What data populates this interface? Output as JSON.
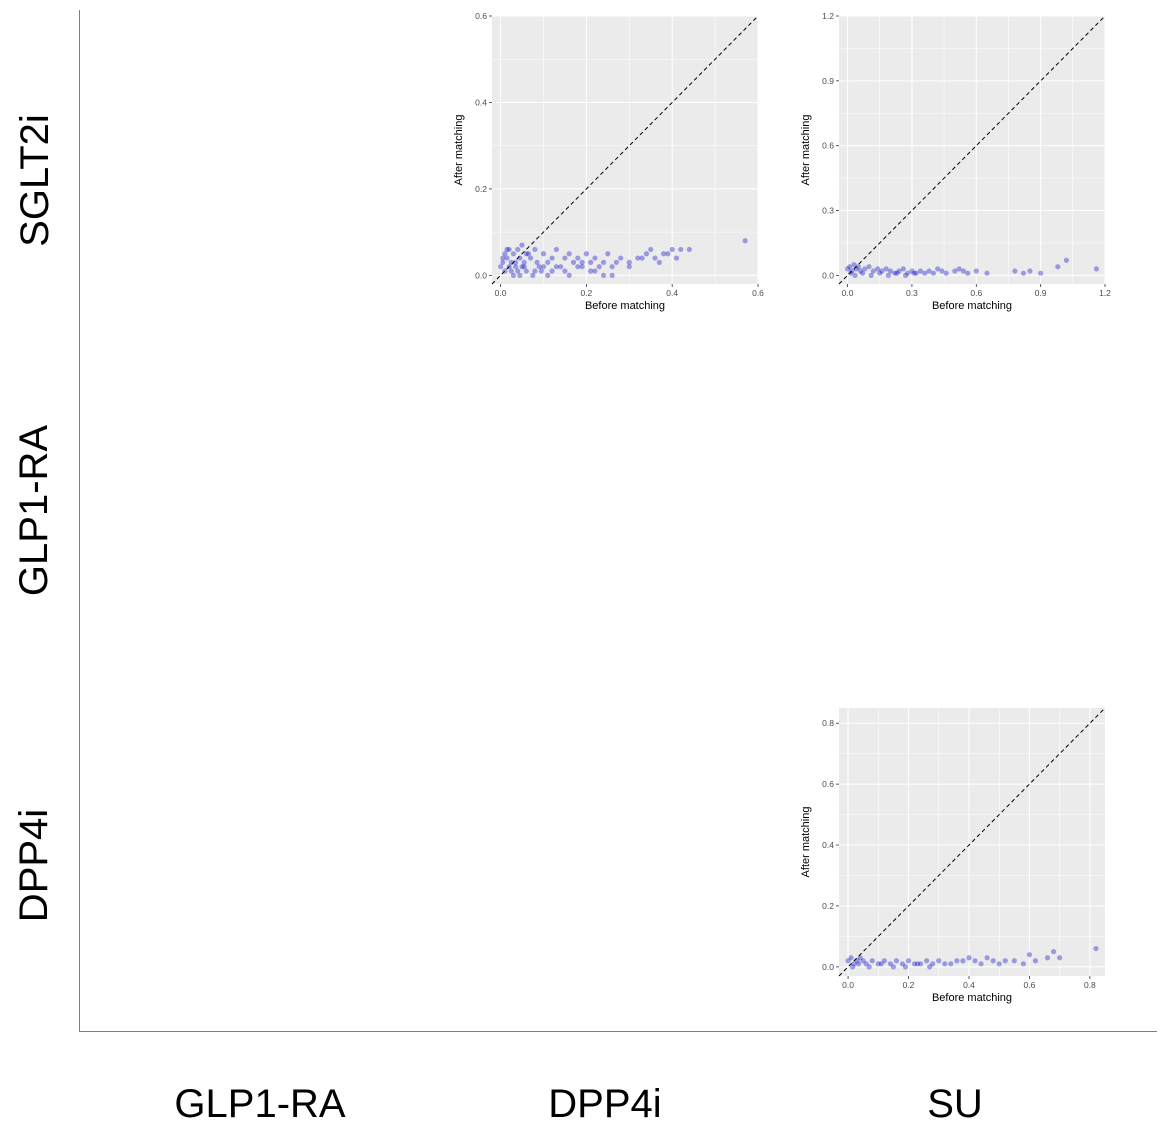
{
  "grid": {
    "rows": [
      "SGLT2i",
      "GLP1-RA",
      "DPP4i"
    ],
    "columns": [
      "GLP1-RA",
      "DPP4i",
      "SU"
    ]
  },
  "colors": {
    "point": "#0000cc",
    "panel_bg": "#ebebeb",
    "grid": "#ffffff",
    "diagonal": "#000000"
  },
  "chart_data": [
    {
      "type": "scatter",
      "panel_row": "SGLT2i",
      "panel_col": "DPP4i",
      "xlabel": "Before matching",
      "ylabel": "After matching",
      "xlim": [
        -0.02,
        0.6
      ],
      "ylim": [
        -0.02,
        0.6
      ],
      "x_ticks": [
        0.0,
        0.2,
        0.4,
        0.6
      ],
      "y_ticks": [
        0.0,
        0.2,
        0.4,
        0.6
      ],
      "tick_labels_x": [
        "0.0",
        "0.2",
        "0.4",
        "0.6"
      ],
      "tick_labels_y": [
        "0.0",
        "0.2",
        "0.4",
        "0.6"
      ],
      "reference_line": "y = x",
      "grid": true,
      "series": [
        {
          "x": [
            0.0,
            0.005,
            0.01,
            0.015,
            0.02,
            0.025,
            0.03,
            0.035,
            0.04,
            0.045,
            0.05,
            0.055,
            0.06,
            0.07,
            0.08,
            0.09,
            0.1,
            0.11,
            0.12,
            0.13,
            0.14,
            0.15,
            0.16,
            0.17,
            0.18,
            0.19,
            0.2,
            0.21,
            0.22,
            0.23,
            0.24,
            0.25,
            0.26,
            0.27,
            0.28,
            0.3,
            0.32,
            0.34,
            0.35,
            0.36,
            0.38,
            0.4,
            0.42,
            0.57,
            0.01,
            0.02,
            0.03,
            0.04,
            0.05,
            0.06,
            0.08,
            0.1,
            0.12,
            0.15,
            0.18,
            0.21,
            0.24,
            0.005,
            0.015,
            0.025,
            0.035,
            0.045,
            0.055,
            0.065,
            0.075,
            0.085,
            0.095,
            0.11,
            0.13,
            0.16,
            0.19,
            0.22,
            0.26,
            0.3,
            0.33,
            0.37,
            0.39,
            0.41,
            0.44
          ],
          "y": [
            0.02,
            0.03,
            0.05,
            0.04,
            0.06,
            0.03,
            0.05,
            0.02,
            0.06,
            0.04,
            0.07,
            0.03,
            0.05,
            0.04,
            0.06,
            0.02,
            0.05,
            0.03,
            0.04,
            0.06,
            0.02,
            0.04,
            0.05,
            0.03,
            0.04,
            0.02,
            0.05,
            0.03,
            0.04,
            0.02,
            0.03,
            0.05,
            0.02,
            0.03,
            0.04,
            0.03,
            0.04,
            0.05,
            0.06,
            0.04,
            0.05,
            0.06,
            0.06,
            0.08,
            0.01,
            0.02,
            0.0,
            0.01,
            0.02,
            0.01,
            0.01,
            0.02,
            0.01,
            0.01,
            0.02,
            0.01,
            0.0,
            0.04,
            0.06,
            0.01,
            0.03,
            0.0,
            0.02,
            0.05,
            0.0,
            0.03,
            0.01,
            0.0,
            0.02,
            0.0,
            0.03,
            0.01,
            0.0,
            0.02,
            0.04,
            0.03,
            0.05,
            0.04,
            0.06
          ]
        }
      ]
    },
    {
      "type": "scatter",
      "panel_row": "SGLT2i",
      "panel_col": "SU",
      "xlabel": "Before matching",
      "ylabel": "After matching",
      "xlim": [
        -0.04,
        1.2
      ],
      "ylim": [
        -0.04,
        1.2
      ],
      "x_ticks": [
        0.0,
        0.3,
        0.6,
        0.9,
        1.2
      ],
      "y_ticks": [
        0.0,
        0.3,
        0.6,
        0.9,
        1.2
      ],
      "tick_labels_x": [
        "0.0",
        "0.3",
        "0.6",
        "0.9",
        "1.2"
      ],
      "tick_labels_y": [
        "0.0",
        "0.3",
        "0.6",
        "0.9",
        "1.2"
      ],
      "reference_line": "y = x",
      "grid": true,
      "series": [
        {
          "x": [
            0.0,
            0.01,
            0.02,
            0.03,
            0.04,
            0.05,
            0.06,
            0.08,
            0.1,
            0.12,
            0.14,
            0.16,
            0.18,
            0.2,
            0.22,
            0.24,
            0.26,
            0.28,
            0.3,
            0.32,
            0.34,
            0.36,
            0.38,
            0.4,
            0.42,
            0.44,
            0.46,
            0.5,
            0.52,
            0.54,
            0.56,
            0.6,
            0.65,
            0.78,
            0.82,
            0.85,
            0.9,
            0.98,
            1.02,
            1.16,
            0.015,
            0.035,
            0.07,
            0.11,
            0.15,
            0.19,
            0.23,
            0.27,
            0.31
          ],
          "y": [
            0.03,
            0.04,
            0.02,
            0.05,
            0.03,
            0.04,
            0.02,
            0.03,
            0.04,
            0.02,
            0.03,
            0.02,
            0.03,
            0.02,
            0.01,
            0.02,
            0.03,
            0.01,
            0.02,
            0.01,
            0.02,
            0.01,
            0.02,
            0.01,
            0.03,
            0.02,
            0.01,
            0.02,
            0.03,
            0.02,
            0.01,
            0.02,
            0.01,
            0.02,
            0.01,
            0.02,
            0.01,
            0.04,
            0.07,
            0.03,
            0.01,
            0.0,
            0.01,
            0.0,
            0.01,
            0.0,
            0.01,
            0.0,
            0.01
          ]
        }
      ]
    },
    {
      "type": "scatter",
      "panel_row": "DPP4i",
      "panel_col": "SU",
      "xlabel": "Before matching",
      "ylabel": "After matching",
      "xlim": [
        -0.03,
        0.85
      ],
      "ylim": [
        -0.03,
        0.85
      ],
      "x_ticks": [
        0.0,
        0.2,
        0.4,
        0.6,
        0.8
      ],
      "y_ticks": [
        0.0,
        0.2,
        0.4,
        0.6,
        0.8
      ],
      "tick_labels_x": [
        "0.0",
        "0.2",
        "0.4",
        "0.6",
        "0.8"
      ],
      "tick_labels_y": [
        "0.0",
        "0.2",
        "0.4",
        "0.6",
        "0.8"
      ],
      "reference_line": "y = x",
      "grid": true,
      "series": [
        {
          "x": [
            0.0,
            0.01,
            0.02,
            0.03,
            0.04,
            0.05,
            0.06,
            0.08,
            0.1,
            0.12,
            0.14,
            0.16,
            0.18,
            0.2,
            0.22,
            0.24,
            0.26,
            0.28,
            0.3,
            0.32,
            0.34,
            0.36,
            0.38,
            0.4,
            0.42,
            0.44,
            0.46,
            0.48,
            0.5,
            0.52,
            0.55,
            0.58,
            0.6,
            0.62,
            0.66,
            0.68,
            0.7,
            0.82,
            0.015,
            0.035,
            0.07,
            0.11,
            0.15,
            0.19,
            0.23,
            0.27
          ],
          "y": [
            0.02,
            0.03,
            0.01,
            0.02,
            0.03,
            0.02,
            0.01,
            0.02,
            0.01,
            0.02,
            0.01,
            0.02,
            0.01,
            0.02,
            0.01,
            0.01,
            0.02,
            0.01,
            0.02,
            0.01,
            0.01,
            0.02,
            0.02,
            0.03,
            0.02,
            0.01,
            0.03,
            0.02,
            0.01,
            0.02,
            0.02,
            0.01,
            0.04,
            0.02,
            0.03,
            0.05,
            0.03,
            0.06,
            0.0,
            0.01,
            0.0,
            0.01,
            0.0,
            0.0,
            0.01,
            0.0
          ]
        }
      ]
    }
  ]
}
